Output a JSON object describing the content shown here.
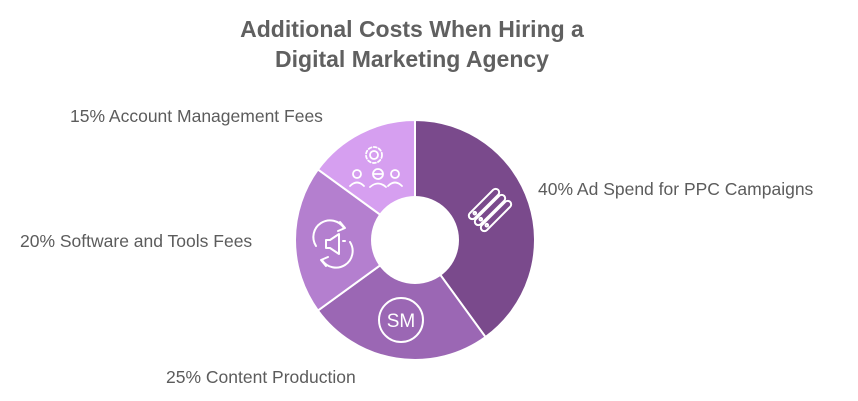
{
  "chart_data": {
    "type": "pie",
    "title_lines": [
      "Additional Costs When Hiring a",
      "Digital Marketing Agency"
    ],
    "slices": [
      {
        "label": "40% Ad Spend for PPC Campaigns",
        "value": 40,
        "color": "#7a4a8c",
        "icon": "list-bars-icon"
      },
      {
        "label": "25% Content Production",
        "value": 25,
        "color": "#9b67b4",
        "icon": "sm-badge-icon"
      },
      {
        "label": "20% Software and Tools Fees",
        "value": 20,
        "color": "#b47fcf",
        "icon": "megaphone-cycle-icon"
      },
      {
        "label": "15% Account Management Fees",
        "value": 15,
        "color": "#d69ff0",
        "icon": "gear-people-icon"
      }
    ],
    "donut": true
  },
  "icon_text": {
    "sm": "SM"
  }
}
